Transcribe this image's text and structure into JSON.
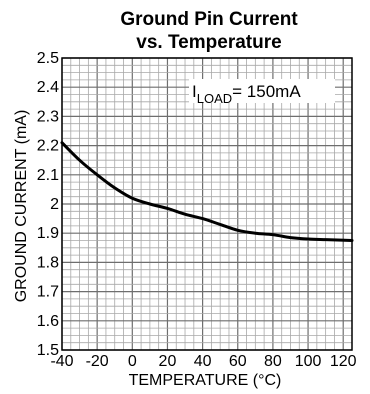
{
  "chart_data": {
    "type": "line",
    "title_line1": "Ground Pin Current",
    "title_line2": "vs. Temperature",
    "xlabel": "TEMPERATURE (°C)",
    "ylabel": "GROUND CURRENT (mA)",
    "xlim": [
      -40,
      125
    ],
    "ylim": [
      1.5,
      2.5
    ],
    "xticks": [
      -40,
      -20,
      0,
      20,
      40,
      60,
      80,
      100,
      120
    ],
    "xtick_labels": [
      "-40",
      "-20",
      "0",
      "20",
      "40",
      "60",
      "80",
      "100",
      "120"
    ],
    "yticks": [
      1.5,
      1.6,
      1.7,
      1.8,
      1.9,
      2,
      2.1,
      2.2,
      2.3,
      2.4,
      2.5
    ],
    "ytick_labels": [
      "1.5",
      "1.6",
      "1.7",
      "1.8",
      "1.9",
      "2",
      "2.1",
      "2.2",
      "2.3",
      "2.4",
      "2.5"
    ],
    "grid": true,
    "annotation": {
      "prefix": "I",
      "subscript": "LOAD",
      "suffix": "= 150mA"
    },
    "series": [
      {
        "x": [
          -40,
          -30,
          -20,
          -10,
          0,
          10,
          20,
          30,
          40,
          50,
          60,
          70,
          80,
          90,
          100,
          110,
          125
        ],
        "y": [
          2.21,
          2.15,
          2.1,
          2.055,
          2.02,
          2.0,
          1.985,
          1.965,
          1.95,
          1.93,
          1.91,
          1.9,
          1.895,
          1.885,
          1.88,
          1.878,
          1.875
        ]
      }
    ]
  }
}
